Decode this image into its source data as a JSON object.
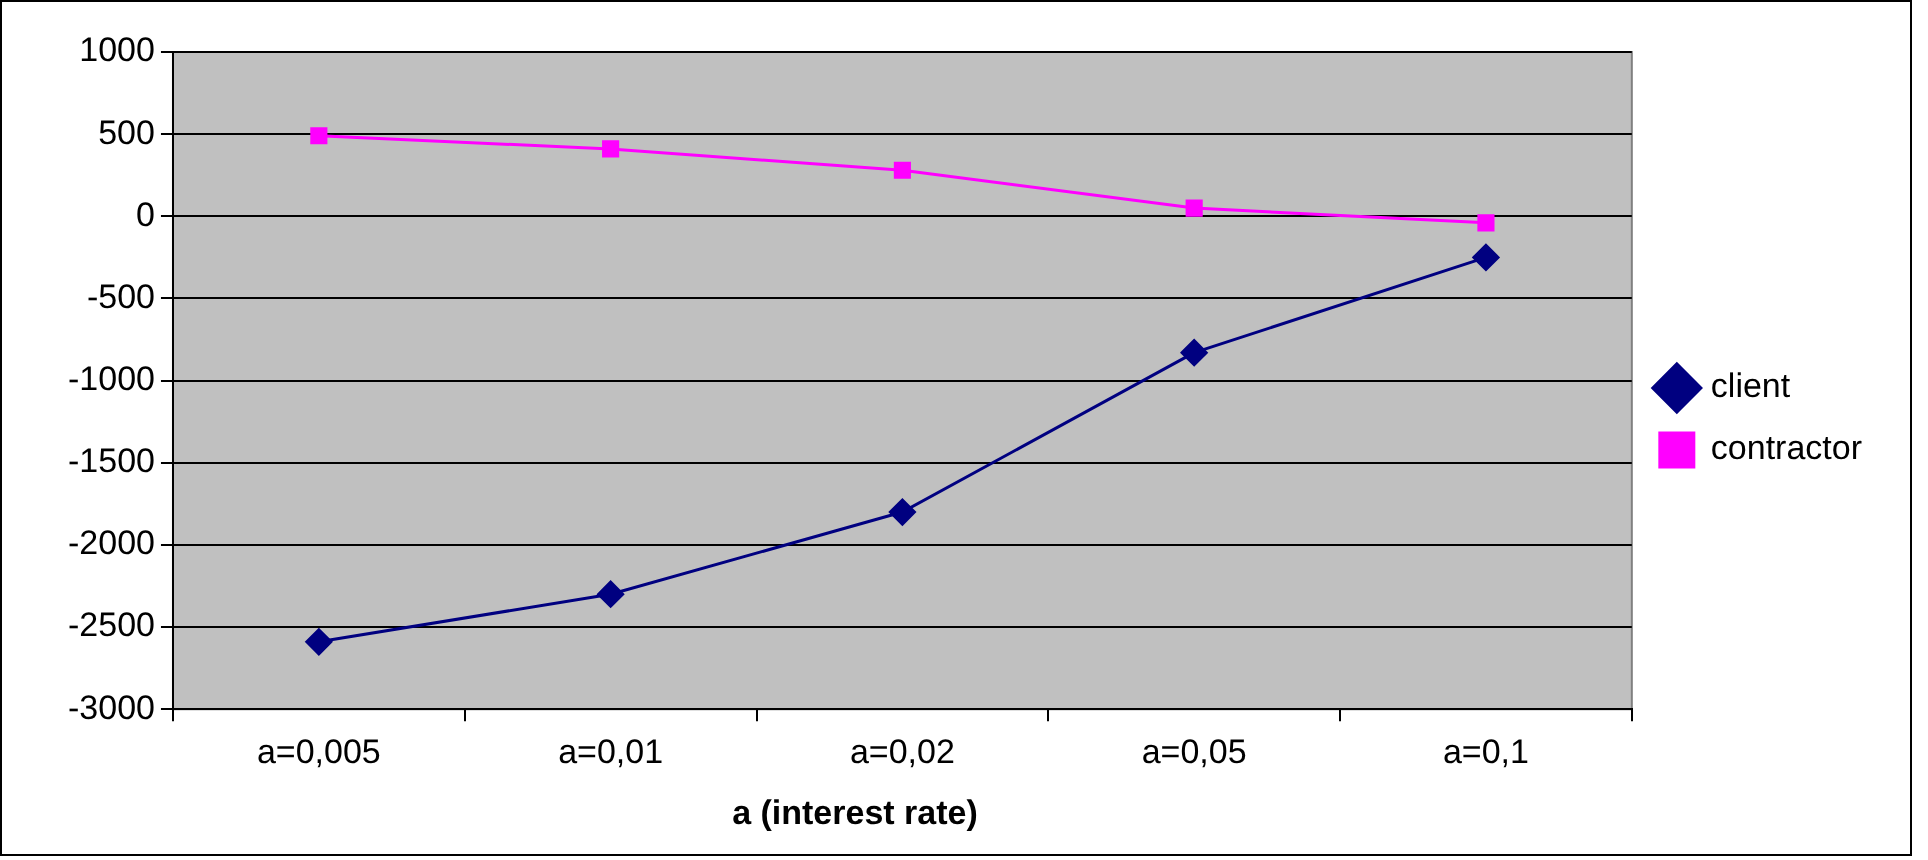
{
  "chart_data": {
    "type": "line",
    "xlabel": "a (interest rate)",
    "categories": [
      "a=0,005",
      "a=0,01",
      "a=0,02",
      "a=0,05",
      "a=0,1"
    ],
    "series": [
      {
        "name": "client",
        "color": "#000080",
        "marker": "diamond",
        "values": [
          -2590,
          -2300,
          -1800,
          -830,
          -250
        ]
      },
      {
        "name": "contractor",
        "color": "#ff00ff",
        "marker": "square",
        "values": [
          490,
          410,
          280,
          50,
          -40
        ]
      }
    ],
    "ylim": [
      -3000,
      1000
    ],
    "yticks": [
      -3000,
      -2500,
      -2000,
      -1500,
      -1000,
      -500,
      0,
      500,
      1000
    ],
    "grid": "y",
    "legend": "right",
    "line_style": "solid"
  }
}
